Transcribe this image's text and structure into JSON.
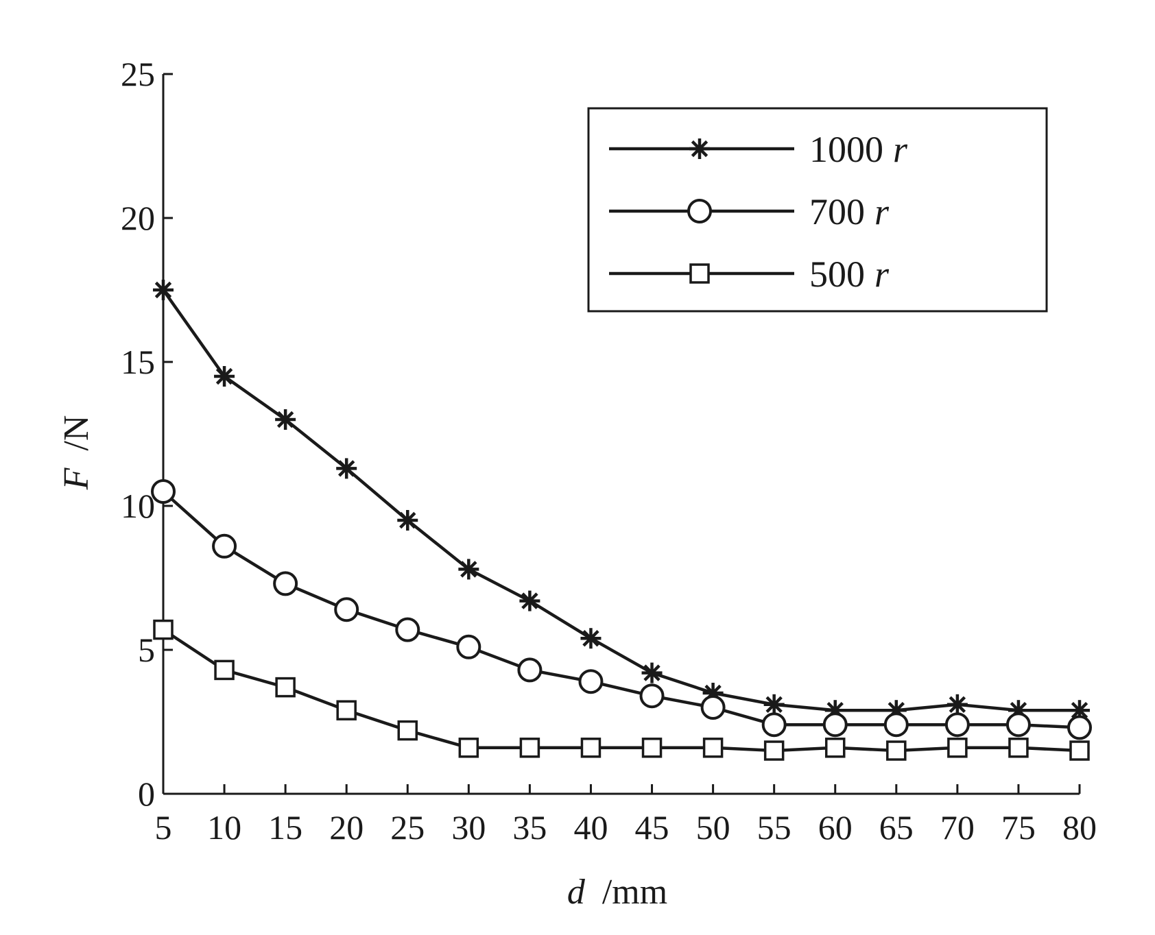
{
  "chart_data": {
    "type": "line",
    "x": [
      5,
      10,
      15,
      20,
      25,
      30,
      35,
      40,
      45,
      50,
      55,
      60,
      65,
      70,
      75,
      80
    ],
    "series": [
      {
        "name_value": "1000",
        "name_unit": "r",
        "marker": "asterisk",
        "values": [
          17.5,
          14.5,
          13.0,
          11.3,
          9.5,
          7.8,
          6.7,
          5.4,
          4.2,
          3.5,
          3.1,
          2.9,
          2.9,
          3.1,
          2.9,
          2.9
        ]
      },
      {
        "name_value": "700",
        "name_unit": "r",
        "marker": "circle",
        "values": [
          10.5,
          8.6,
          7.3,
          6.4,
          5.7,
          5.1,
          4.3,
          3.9,
          3.4,
          3.0,
          2.4,
          2.4,
          2.4,
          2.4,
          2.4,
          2.3
        ]
      },
      {
        "name_value": "500",
        "name_unit": "r",
        "marker": "square",
        "values": [
          5.7,
          4.3,
          3.7,
          2.9,
          2.2,
          1.6,
          1.6,
          1.6,
          1.6,
          1.6,
          1.5,
          1.6,
          1.5,
          1.6,
          1.6,
          1.5
        ]
      }
    ],
    "xlabel_var": "d",
    "xlabel_unit": "/mm",
    "ylabel_var": "F",
    "ylabel_unit": "/N",
    "xlim": [
      5,
      80
    ],
    "ylim": [
      0,
      25
    ],
    "xticks": [
      5,
      10,
      15,
      20,
      25,
      30,
      35,
      40,
      45,
      50,
      55,
      60,
      65,
      70,
      75,
      80
    ],
    "yticks": [
      0,
      5,
      10,
      15,
      20,
      25
    ],
    "grid": false,
    "legend_position": "top-right",
    "line_color": "#1a1a1a"
  }
}
